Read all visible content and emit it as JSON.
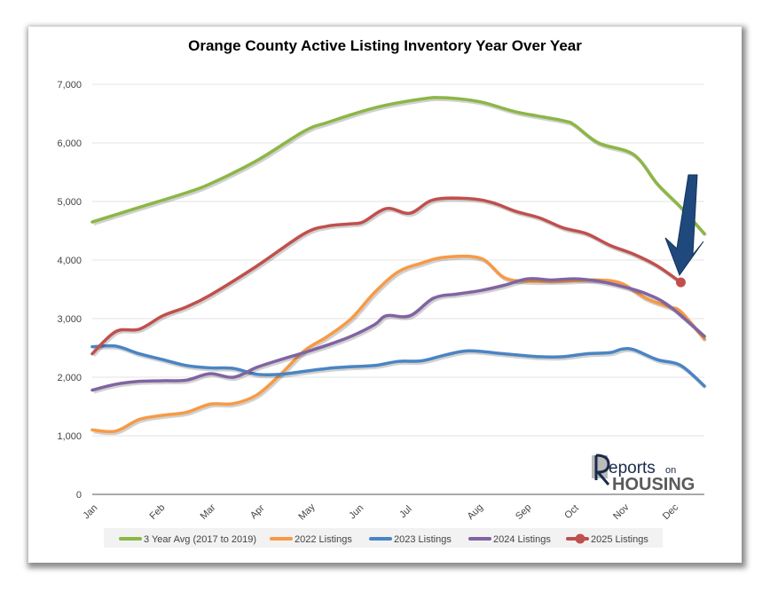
{
  "chart_data": {
    "type": "line",
    "title": "Orange County Active Listing Inventory Year Over Year",
    "xlabel": "",
    "ylabel": "",
    "ylim": [
      0,
      7000
    ],
    "yticks": [
      0,
      1000,
      2000,
      3000,
      4000,
      5000,
      6000,
      7000
    ],
    "ytick_labels": [
      "0",
      "1,000",
      "2,000",
      "3,000",
      "4,000",
      "5,000",
      "6,000",
      "7,000"
    ],
    "x_unit": "week of year",
    "xlim": [
      0,
      52
    ],
    "xticks": [
      0,
      5.7,
      10,
      14.2,
      18.4,
      22.6,
      26.8,
      32.7,
      36.8,
      40.9,
      45.1,
      49.3
    ],
    "xtick_labels": [
      "Jan",
      "Feb",
      "Mar",
      "Apr",
      "May",
      "Jun",
      "Jul",
      "Aug",
      "Sep",
      "Oct",
      "Nov",
      "Dec"
    ],
    "grid": true,
    "legend": "bottom",
    "series": [
      {
        "name": "3 Year Avg (2017 to 2019)",
        "color": "#8db646",
        "x": [
          0,
          4,
          8,
          10,
          14,
          18,
          20,
          24,
          28,
          30,
          33,
          36,
          40,
          41,
          43,
          46,
          48,
          50,
          52
        ],
        "values": [
          4650,
          4900,
          5150,
          5300,
          5700,
          6200,
          6350,
          6600,
          6750,
          6770,
          6700,
          6530,
          6380,
          6300,
          6000,
          5800,
          5300,
          4900,
          4450
        ]
      },
      {
        "name": "2022 Listings",
        "color": "#f79a46",
        "x": [
          0,
          2,
          4,
          6,
          8,
          10,
          12,
          14,
          16,
          18,
          20,
          22,
          24,
          26,
          28,
          30,
          33,
          35,
          37,
          40,
          43,
          45,
          47,
          49,
          50,
          52
        ],
        "values": [
          1100,
          1080,
          1280,
          1350,
          1400,
          1540,
          1550,
          1700,
          2050,
          2450,
          2700,
          3000,
          3450,
          3800,
          3950,
          4050,
          4030,
          3700,
          3640,
          3640,
          3660,
          3600,
          3350,
          3200,
          3120,
          2650
        ]
      },
      {
        "name": "2023 Listings",
        "color": "#4a84c4",
        "x": [
          0,
          2,
          4,
          6,
          8,
          10,
          12,
          14,
          16,
          18,
          20,
          22,
          24,
          26,
          28,
          30,
          32,
          35,
          38,
          40,
          42,
          44,
          45,
          46,
          48,
          50,
          52
        ],
        "values": [
          2520,
          2530,
          2400,
          2300,
          2200,
          2160,
          2150,
          2050,
          2050,
          2100,
          2150,
          2180,
          2200,
          2270,
          2280,
          2380,
          2450,
          2400,
          2350,
          2350,
          2400,
          2420,
          2480,
          2470,
          2300,
          2200,
          1850
        ]
      },
      {
        "name": "2024 Listings",
        "color": "#8064a2",
        "x": [
          0,
          2,
          4,
          6,
          8,
          10,
          12,
          14,
          16,
          18,
          20,
          22,
          24,
          25,
          27,
          29,
          31,
          33,
          35,
          37,
          39,
          41,
          43,
          45,
          47,
          49,
          52
        ],
        "values": [
          1780,
          1880,
          1930,
          1940,
          1950,
          2060,
          2000,
          2170,
          2300,
          2420,
          2550,
          2700,
          2900,
          3050,
          3050,
          3350,
          3420,
          3480,
          3570,
          3680,
          3660,
          3680,
          3640,
          3550,
          3430,
          3220,
          2700
        ]
      },
      {
        "name": "2025 Listings",
        "color": "#c0504d",
        "marker": "last-point",
        "x": [
          0,
          2,
          4,
          6,
          8,
          10,
          14,
          18,
          20,
          22,
          23,
          25,
          27,
          29,
          32,
          34,
          36,
          38,
          40,
          42,
          44,
          46,
          48,
          50
        ],
        "values": [
          2400,
          2780,
          2820,
          3050,
          3200,
          3400,
          3900,
          4450,
          4580,
          4620,
          4650,
          4880,
          4800,
          5030,
          5050,
          4980,
          4830,
          4720,
          4550,
          4450,
          4250,
          4100,
          3900,
          3620
        ]
      }
    ],
    "annotations": [
      {
        "type": "arrow",
        "color": "#1f497d",
        "points_to": "2025 Listings last point"
      }
    ],
    "logo": "Reports on HOUSING"
  }
}
